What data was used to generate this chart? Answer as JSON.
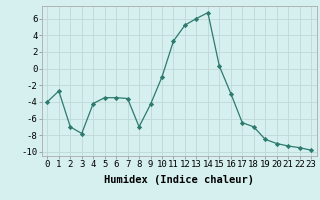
{
  "x": [
    0,
    1,
    2,
    3,
    4,
    5,
    6,
    7,
    8,
    9,
    10,
    11,
    12,
    13,
    14,
    15,
    16,
    17,
    18,
    19,
    20,
    21,
    22,
    23
  ],
  "y": [
    -4,
    -2.7,
    -7,
    -7.8,
    -4.2,
    -3.5,
    -3.5,
    -3.6,
    -7,
    -4.3,
    -1,
    3.3,
    5.2,
    6,
    6.7,
    0.3,
    -3,
    -6.5,
    -7,
    -8.5,
    -9,
    -9.3,
    -9.5,
    -9.8
  ],
  "line_color": "#2d7a6e",
  "marker": "D",
  "marker_size": 2.2,
  "bg_color": "#d6f0f0",
  "grid_color": "#c0d8d8",
  "xlabel": "Humidex (Indice chaleur)",
  "xlim": [
    -0.5,
    23.5
  ],
  "ylim": [
    -10.5,
    7.5
  ],
  "yticks": [
    -10,
    -8,
    -6,
    -4,
    -2,
    0,
    2,
    4,
    6
  ],
  "xtick_labels": [
    "0",
    "1",
    "2",
    "3",
    "4",
    "5",
    "6",
    "7",
    "8",
    "9",
    "10",
    "11",
    "12",
    "13",
    "14",
    "15",
    "16",
    "17",
    "18",
    "19",
    "20",
    "21",
    "22",
    "23"
  ],
  "xlabel_fontsize": 7.5,
  "tick_fontsize": 6.5
}
